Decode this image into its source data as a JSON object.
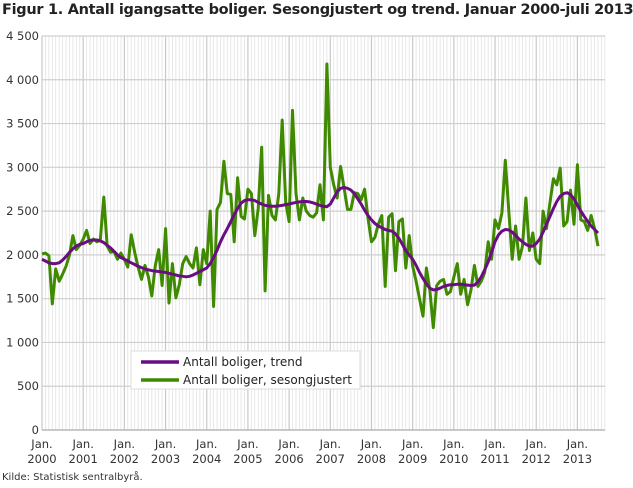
{
  "chart_data": {
    "type": "line",
    "title": "Figur 1. Antall igangsatte boliger. Sesongjustert og trend. Januar 2000-juli 2013",
    "source": "Kilde: Statistisk sentralbyrå.",
    "xlabel": "",
    "ylabel": "",
    "x_start": "2000-01",
    "x_end": "2013-07",
    "frequency": "monthly",
    "ylim": [
      0,
      4500
    ],
    "yticks": [
      0,
      500,
      1000,
      1500,
      2000,
      2500,
      3000,
      3500,
      4000,
      4500
    ],
    "ytick_labels": [
      "0",
      "500",
      "1 000",
      "1 500",
      "2 000",
      "2 500",
      "3 000",
      "3 500",
      "4 000",
      "4 500"
    ],
    "xtick_labels": [
      [
        "Jan.",
        "2000"
      ],
      [
        "Jan.",
        "2001"
      ],
      [
        "Jan.",
        "2002"
      ],
      [
        "Jan.",
        "2003"
      ],
      [
        "Jan.",
        "2004"
      ],
      [
        "Jan.",
        "2005"
      ],
      [
        "Jan.",
        "2006"
      ],
      [
        "Jan.",
        "2007"
      ],
      [
        "Jan.",
        "2008"
      ],
      [
        "Jan.",
        "2009"
      ],
      [
        "Jan.",
        "2010"
      ],
      [
        "Jan.",
        "2011"
      ],
      [
        "Jan.",
        "2012"
      ],
      [
        "Jan.",
        "2013"
      ]
    ],
    "grid": true,
    "legend_placement": "bottom-left inside",
    "series": [
      {
        "name": "Antall boliger, trend",
        "color": "#6a0d83",
        "values": [
          1950,
          1930,
          1910,
          1900,
          1900,
          1910,
          1940,
          1980,
          2030,
          2070,
          2100,
          2120,
          2130,
          2150,
          2165,
          2170,
          2170,
          2160,
          2140,
          2110,
          2080,
          2040,
          2000,
          1970,
          1950,
          1930,
          1910,
          1890,
          1870,
          1855,
          1840,
          1830,
          1820,
          1815,
          1810,
          1805,
          1800,
          1790,
          1780,
          1770,
          1760,
          1755,
          1750,
          1755,
          1770,
          1790,
          1810,
          1830,
          1850,
          1900,
          1970,
          2050,
          2150,
          2230,
          2300,
          2380,
          2460,
          2530,
          2590,
          2620,
          2630,
          2630,
          2620,
          2600,
          2580,
          2565,
          2560,
          2555,
          2555,
          2560,
          2565,
          2575,
          2580,
          2590,
          2600,
          2605,
          2610,
          2610,
          2605,
          2595,
          2580,
          2565,
          2555,
          2550,
          2580,
          2650,
          2720,
          2760,
          2770,
          2760,
          2740,
          2700,
          2640,
          2580,
          2510,
          2450,
          2400,
          2360,
          2330,
          2310,
          2290,
          2280,
          2270,
          2240,
          2190,
          2120,
          2050,
          2000,
          1950,
          1880,
          1800,
          1730,
          1670,
          1620,
          1600,
          1605,
          1620,
          1640,
          1650,
          1660,
          1660,
          1665,
          1665,
          1660,
          1655,
          1650,
          1655,
          1690,
          1750,
          1830,
          1920,
          2030,
          2150,
          2230,
          2270,
          2290,
          2285,
          2260,
          2220,
          2180,
          2150,
          2120,
          2100,
          2100,
          2130,
          2180,
          2260,
          2350,
          2440,
          2530,
          2610,
          2670,
          2700,
          2710,
          2690,
          2640,
          2570,
          2500,
          2440,
          2380,
          2330,
          2290,
          2250
        ]
      },
      {
        "name": "Antall boliger, sesongjustert",
        "color": "#3f8a00",
        "values": [
          2010,
          2020,
          1990,
          1440,
          1840,
          1700,
          1780,
          1870,
          2000,
          2220,
          2060,
          2110,
          2180,
          2280,
          2130,
          2180,
          2150,
          2170,
          2660,
          2100,
          2030,
          2040,
          1950,
          2020,
          1950,
          1860,
          2230,
          2030,
          1860,
          1720,
          1880,
          1750,
          1530,
          1880,
          2060,
          1650,
          2300,
          1450,
          1900,
          1510,
          1660,
          1900,
          1980,
          1900,
          1850,
          2080,
          1660,
          2060,
          1900,
          2500,
          1410,
          2520,
          2600,
          3070,
          2700,
          2690,
          2150,
          2880,
          2440,
          2410,
          2750,
          2700,
          2220,
          2530,
          3230,
          1590,
          2680,
          2450,
          2400,
          2700,
          3540,
          2600,
          2380,
          3650,
          2700,
          2400,
          2650,
          2500,
          2450,
          2430,
          2480,
          2800,
          2400,
          4180,
          3000,
          2800,
          2650,
          3010,
          2770,
          2520,
          2520,
          2710,
          2700,
          2630,
          2750,
          2420,
          2150,
          2200,
          2350,
          2450,
          1640,
          2430,
          2470,
          1820,
          2380,
          2410,
          1850,
          2220,
          1870,
          1700,
          1500,
          1300,
          1850,
          1600,
          1170,
          1650,
          1700,
          1720,
          1550,
          1580,
          1750,
          1900,
          1550,
          1720,
          1430,
          1600,
          1880,
          1640,
          1700,
          1800,
          2150,
          1950,
          2400,
          2300,
          2480,
          3080,
          2500,
          1950,
          2330,
          1950,
          2100,
          2650,
          2050,
          2250,
          1950,
          1900,
          2500,
          2300,
          2600,
          2870,
          2800,
          2990,
          2330,
          2380,
          2740,
          2350,
          3030,
          2400,
          2380,
          2280,
          2450,
          2300,
          2100
        ]
      }
    ]
  }
}
